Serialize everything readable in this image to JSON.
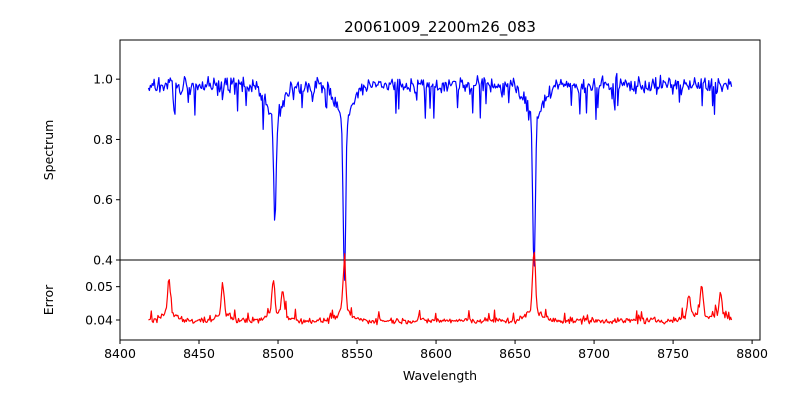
{
  "chart_data": {
    "type": "line",
    "title": "20061009_2200m26_083",
    "xlabel": "Wavelength",
    "xlim": [
      8400,
      8805
    ],
    "x_ticks": [
      8400,
      8450,
      8500,
      8550,
      8600,
      8650,
      8700,
      8750,
      8800
    ],
    "x_range": [
      8418,
      8787
    ],
    "grid": false,
    "legend": "none",
    "panels": [
      {
        "id": "spectrum",
        "ylabel": "Spectrum",
        "ylim": [
          0.4,
          1.13
        ],
        "y_ticks": [
          0.4,
          0.6,
          0.8,
          1.0
        ],
        "y_tick_labels": [
          "0.4",
          "0.6",
          "0.8",
          "1.0"
        ],
        "color": "#0000ff",
        "baseline": 0.98,
        "features": [
          {
            "x": 8498,
            "y": 0.62
          },
          {
            "x": 8542,
            "y": 0.43
          },
          {
            "x": 8662,
            "y": 0.48
          }
        ]
      },
      {
        "id": "error",
        "ylabel": "Error",
        "ylim": [
          0.034,
          0.058
        ],
        "y_ticks": [
          0.04,
          0.05
        ],
        "y_tick_labels": [
          "0.04",
          "0.05"
        ],
        "color": "#ff0000",
        "baseline": 0.0398,
        "features": [
          {
            "x": 8431,
            "y": 0.0505
          },
          {
            "x": 8465,
            "y": 0.049
          },
          {
            "x": 8497,
            "y": 0.0495
          },
          {
            "x": 8503,
            "y": 0.047
          },
          {
            "x": 8542,
            "y": 0.0545
          },
          {
            "x": 8662,
            "y": 0.0575
          },
          {
            "x": 8760,
            "y": 0.0465
          },
          {
            "x": 8768,
            "y": 0.0485
          },
          {
            "x": 8780,
            "y": 0.047
          }
        ]
      }
    ]
  }
}
